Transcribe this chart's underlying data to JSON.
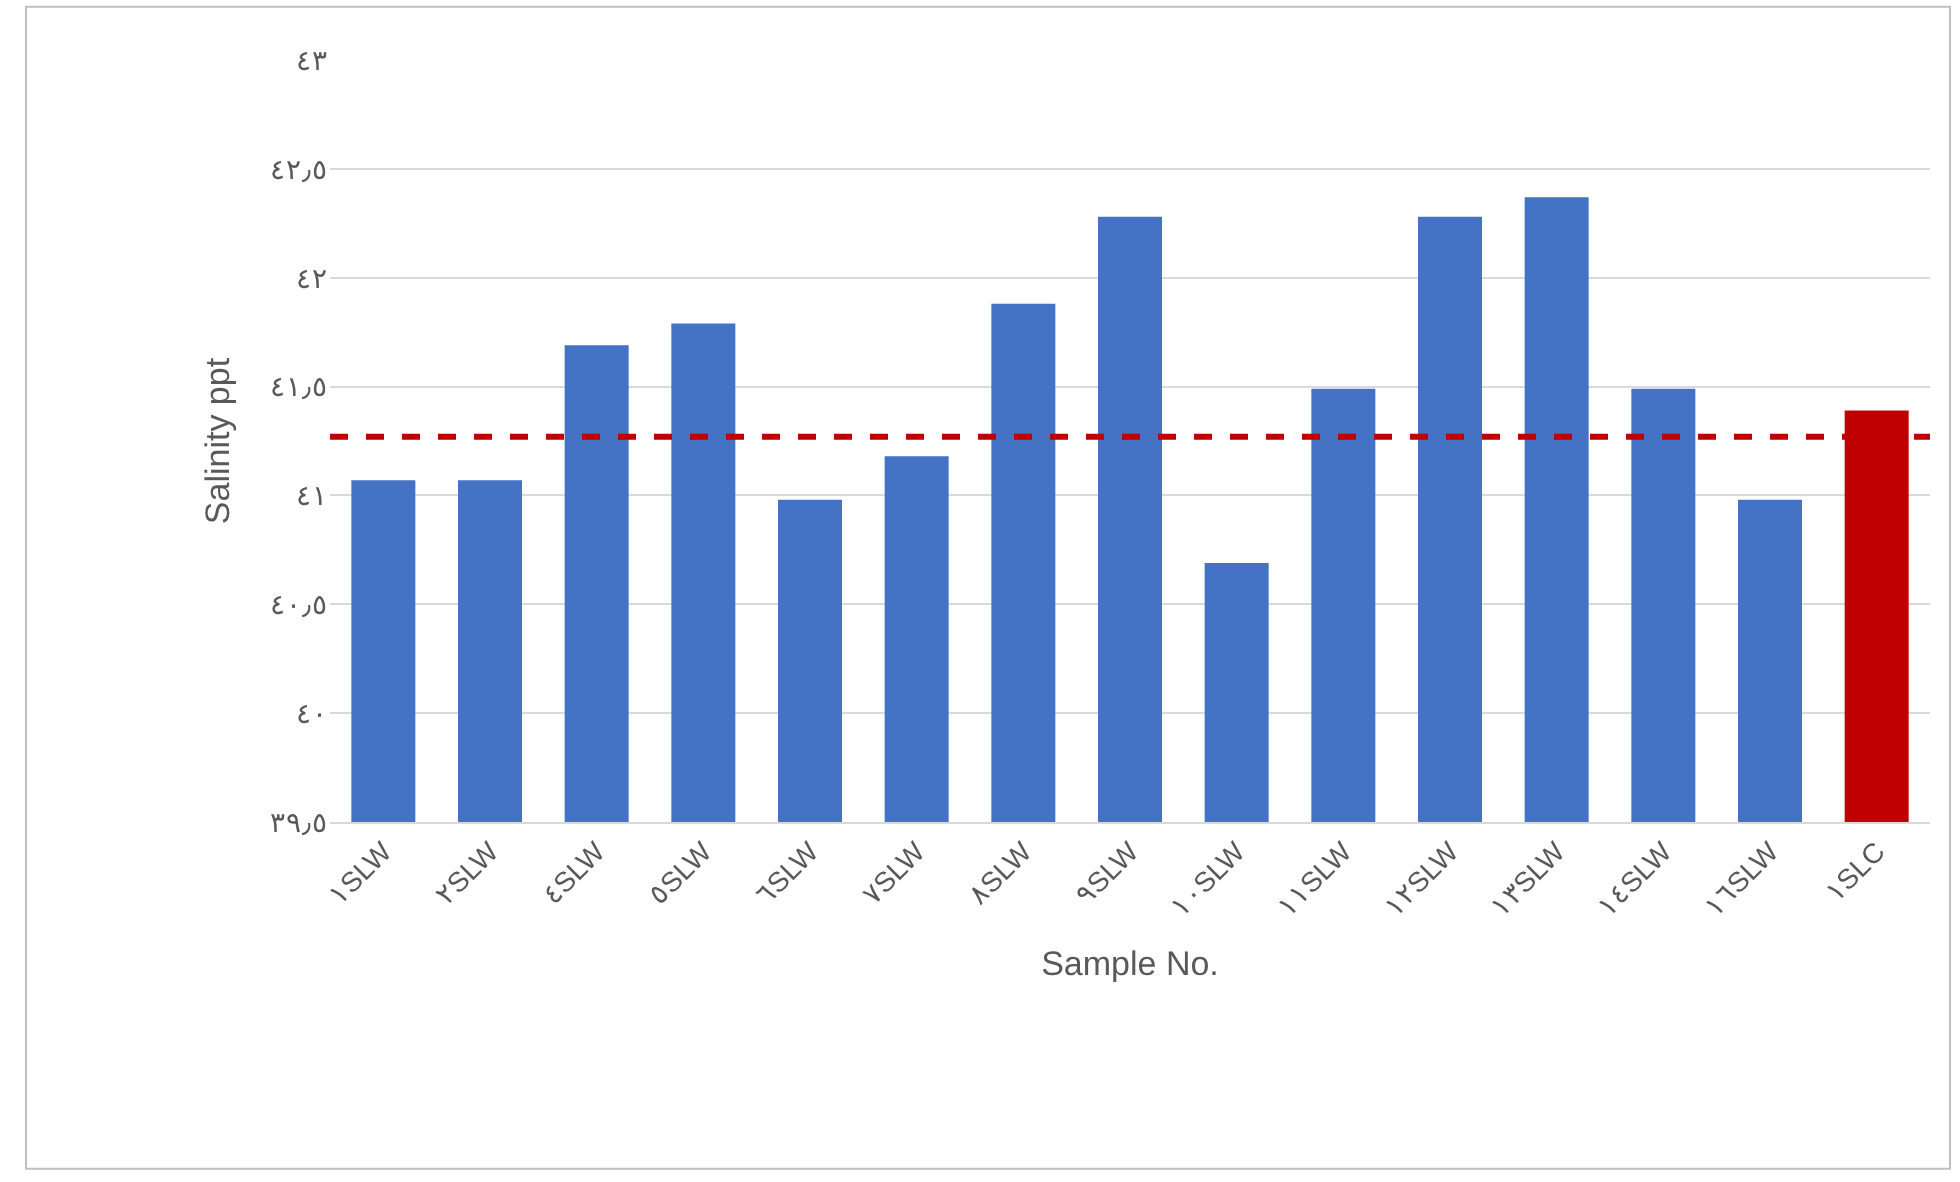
{
  "chart_data": {
    "type": "bar",
    "xlabel": "Sample No.",
    "ylabel": "Salinity ppt",
    "categories": [
      "١SLW",
      "٢SLW",
      "٤SLW",
      "٥SLW",
      "٦SLW",
      "٧SLW",
      "٨SLW",
      "٩SLW",
      "١٠SLW",
      "١١SLW",
      "١٢SLW",
      "١٣SLW",
      "١٤SLW",
      "١٦SLW",
      "١SLC"
    ],
    "values": [
      41.07,
      41.07,
      41.69,
      41.79,
      40.98,
      41.18,
      41.88,
      42.28,
      40.69,
      41.49,
      42.28,
      42.37,
      41.49,
      40.98,
      41.39
    ],
    "colors": [
      "#4472c4",
      "#4472c4",
      "#4472c4",
      "#4472c4",
      "#4472c4",
      "#4472c4",
      "#4472c4",
      "#4472c4",
      "#4472c4",
      "#4472c4",
      "#4472c4",
      "#4472c4",
      "#4472c4",
      "#4472c4",
      "#c00000"
    ],
    "ylim": [
      39.5,
      43
    ],
    "yticks": [
      {
        "value": 39.5,
        "label": "٣٩٫٥"
      },
      {
        "value": 40,
        "label": "٤٠"
      },
      {
        "value": 40.5,
        "label": "٤٠٫٥"
      },
      {
        "value": 41,
        "label": "٤١"
      },
      {
        "value": 41.5,
        "label": "٤١٫٥"
      },
      {
        "value": 42,
        "label": "٤٢"
      },
      {
        "value": 42.5,
        "label": "٤٢٫٥"
      },
      {
        "value": 43,
        "label": "٤٣"
      }
    ],
    "grid": "y",
    "ref_lines": [
      {
        "axis": "y",
        "value": 41.27,
        "color": "#c00000",
        "line_style": "dashed"
      }
    ]
  }
}
